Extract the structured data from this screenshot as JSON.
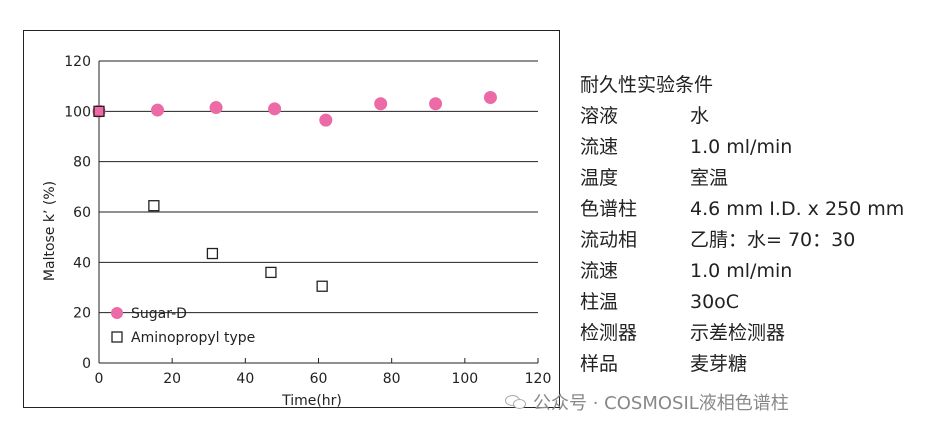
{
  "chart_data": {
    "type": "scatter",
    "title": "",
    "xlabel": "Time(hr)",
    "ylabel": "Maltose k’ (%)",
    "xlim": [
      0,
      120
    ],
    "ylim": [
      0,
      120
    ],
    "x_ticks": [
      "0",
      "20",
      "40",
      "60",
      "80",
      "100",
      "120"
    ],
    "y_ticks": [
      "0",
      "20",
      "40",
      "60",
      "80",
      "100",
      "120"
    ],
    "grid": "horizontal",
    "legend_position": "bottom-left",
    "series": [
      {
        "name": "Sugar-D",
        "marker": "filled-circle",
        "color": "#ec6aa6",
        "points": [
          {
            "x": 0,
            "y": 100
          },
          {
            "x": 16,
            "y": 100.5
          },
          {
            "x": 32,
            "y": 101.5
          },
          {
            "x": 48,
            "y": 101
          },
          {
            "x": 62,
            "y": 96.5
          },
          {
            "x": 77,
            "y": 103
          },
          {
            "x": 92,
            "y": 103
          },
          {
            "x": 107,
            "y": 105.5
          }
        ]
      },
      {
        "name": "Aminopropyl type",
        "marker": "open-square",
        "color": "#222222",
        "points": [
          {
            "x": 0,
            "y": 100
          },
          {
            "x": 15,
            "y": 62.5
          },
          {
            "x": 31,
            "y": 43.5
          },
          {
            "x": 47,
            "y": 36
          },
          {
            "x": 61,
            "y": 30.5
          }
        ]
      }
    ]
  },
  "conditions": {
    "title": "耐久性实验条件",
    "rows": [
      {
        "label": "溶液",
        "value": "水"
      },
      {
        "label": "流速",
        "value": "1.0 ml/min"
      },
      {
        "label": "温度",
        "value": "室温"
      },
      {
        "label": "色谱柱",
        "value": "4.6 mm I.D. x 250 mm"
      },
      {
        "label": "流动相",
        "value": "乙腈：水= 70：30"
      },
      {
        "label": "流速",
        "value": "1.0 ml/min"
      },
      {
        "label": "柱温",
        "value": "30oC"
      },
      {
        "label": "检测器",
        "value": "示差检测器"
      },
      {
        "label": "样品",
        "value": "麦芽糖"
      }
    ]
  },
  "footer": {
    "icon": "wechat-icon",
    "text": "公众号 · COSMOSIL液相色谱柱"
  }
}
